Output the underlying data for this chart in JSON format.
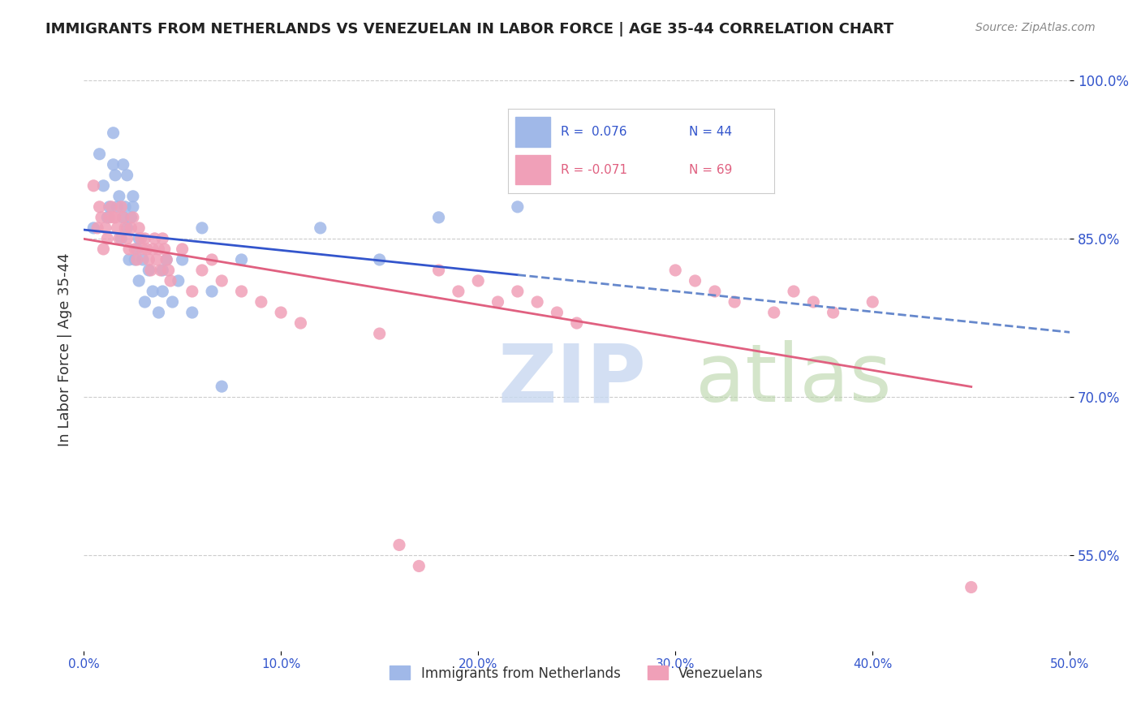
{
  "title": "IMMIGRANTS FROM NETHERLANDS VS VENEZUELAN IN LABOR FORCE | AGE 35-44 CORRELATION CHART",
  "source": "Source: ZipAtlas.com",
  "ylabel": "In Labor Force | Age 35-44",
  "xlim": [
    0.0,
    0.5
  ],
  "ylim": [
    0.46,
    1.03
  ],
  "xticks": [
    0.0,
    0.1,
    0.2,
    0.3,
    0.4,
    0.5
  ],
  "xticklabels": [
    "0.0%",
    "10.0%",
    "20.0%",
    "30.0%",
    "40.0%",
    "50.0%"
  ],
  "ytick_positions": [
    0.55,
    0.7,
    0.85,
    1.0
  ],
  "yticklabels": [
    "55.0%",
    "70.0%",
    "85.0%",
    "100.0%"
  ],
  "grid_color": "#cccccc",
  "background_color": "#ffffff",
  "blue_color": "#a0b8e8",
  "pink_color": "#f0a0b8",
  "blue_line_color": "#3355cc",
  "pink_line_color": "#e06080",
  "blue_dash_color": "#6688cc",
  "tick_label_color": "#3355cc",
  "netherlands_x": [
    0.005,
    0.008,
    0.01,
    0.012,
    0.013,
    0.015,
    0.015,
    0.016,
    0.017,
    0.018,
    0.019,
    0.02,
    0.02,
    0.021,
    0.022,
    0.022,
    0.023,
    0.024,
    0.025,
    0.025,
    0.026,
    0.027,
    0.028,
    0.028,
    0.03,
    0.031,
    0.033,
    0.035,
    0.038,
    0.04,
    0.04,
    0.042,
    0.045,
    0.048,
    0.05,
    0.055,
    0.06,
    0.065,
    0.07,
    0.08,
    0.12,
    0.15,
    0.18,
    0.22
  ],
  "netherlands_y": [
    0.86,
    0.93,
    0.9,
    0.87,
    0.88,
    0.95,
    0.92,
    0.91,
    0.88,
    0.89,
    0.85,
    0.87,
    0.92,
    0.88,
    0.86,
    0.91,
    0.83,
    0.87,
    0.89,
    0.88,
    0.83,
    0.84,
    0.81,
    0.85,
    0.83,
    0.79,
    0.82,
    0.8,
    0.78,
    0.8,
    0.82,
    0.83,
    0.79,
    0.81,
    0.83,
    0.78,
    0.86,
    0.8,
    0.71,
    0.83,
    0.86,
    0.83,
    0.87,
    0.88
  ],
  "venezuelan_x": [
    0.005,
    0.007,
    0.008,
    0.009,
    0.01,
    0.011,
    0.012,
    0.013,
    0.014,
    0.015,
    0.016,
    0.017,
    0.018,
    0.019,
    0.02,
    0.021,
    0.022,
    0.023,
    0.024,
    0.025,
    0.026,
    0.027,
    0.028,
    0.029,
    0.03,
    0.031,
    0.032,
    0.033,
    0.034,
    0.035,
    0.036,
    0.037,
    0.038,
    0.039,
    0.04,
    0.041,
    0.042,
    0.043,
    0.044,
    0.05,
    0.055,
    0.06,
    0.065,
    0.07,
    0.08,
    0.09,
    0.1,
    0.11,
    0.15,
    0.16,
    0.17,
    0.18,
    0.19,
    0.2,
    0.21,
    0.22,
    0.23,
    0.24,
    0.25,
    0.3,
    0.31,
    0.32,
    0.33,
    0.35,
    0.36,
    0.37,
    0.38,
    0.4,
    0.45
  ],
  "venezuelan_y": [
    0.9,
    0.86,
    0.88,
    0.87,
    0.84,
    0.86,
    0.85,
    0.87,
    0.88,
    0.87,
    0.87,
    0.86,
    0.85,
    0.88,
    0.87,
    0.86,
    0.85,
    0.84,
    0.86,
    0.87,
    0.84,
    0.83,
    0.86,
    0.85,
    0.84,
    0.85,
    0.84,
    0.83,
    0.82,
    0.84,
    0.85,
    0.83,
    0.84,
    0.82,
    0.85,
    0.84,
    0.83,
    0.82,
    0.81,
    0.84,
    0.8,
    0.82,
    0.83,
    0.81,
    0.8,
    0.79,
    0.78,
    0.77,
    0.76,
    0.56,
    0.54,
    0.82,
    0.8,
    0.81,
    0.79,
    0.8,
    0.79,
    0.78,
    0.77,
    0.82,
    0.81,
    0.8,
    0.79,
    0.78,
    0.8,
    0.79,
    0.78,
    0.79,
    0.52
  ]
}
